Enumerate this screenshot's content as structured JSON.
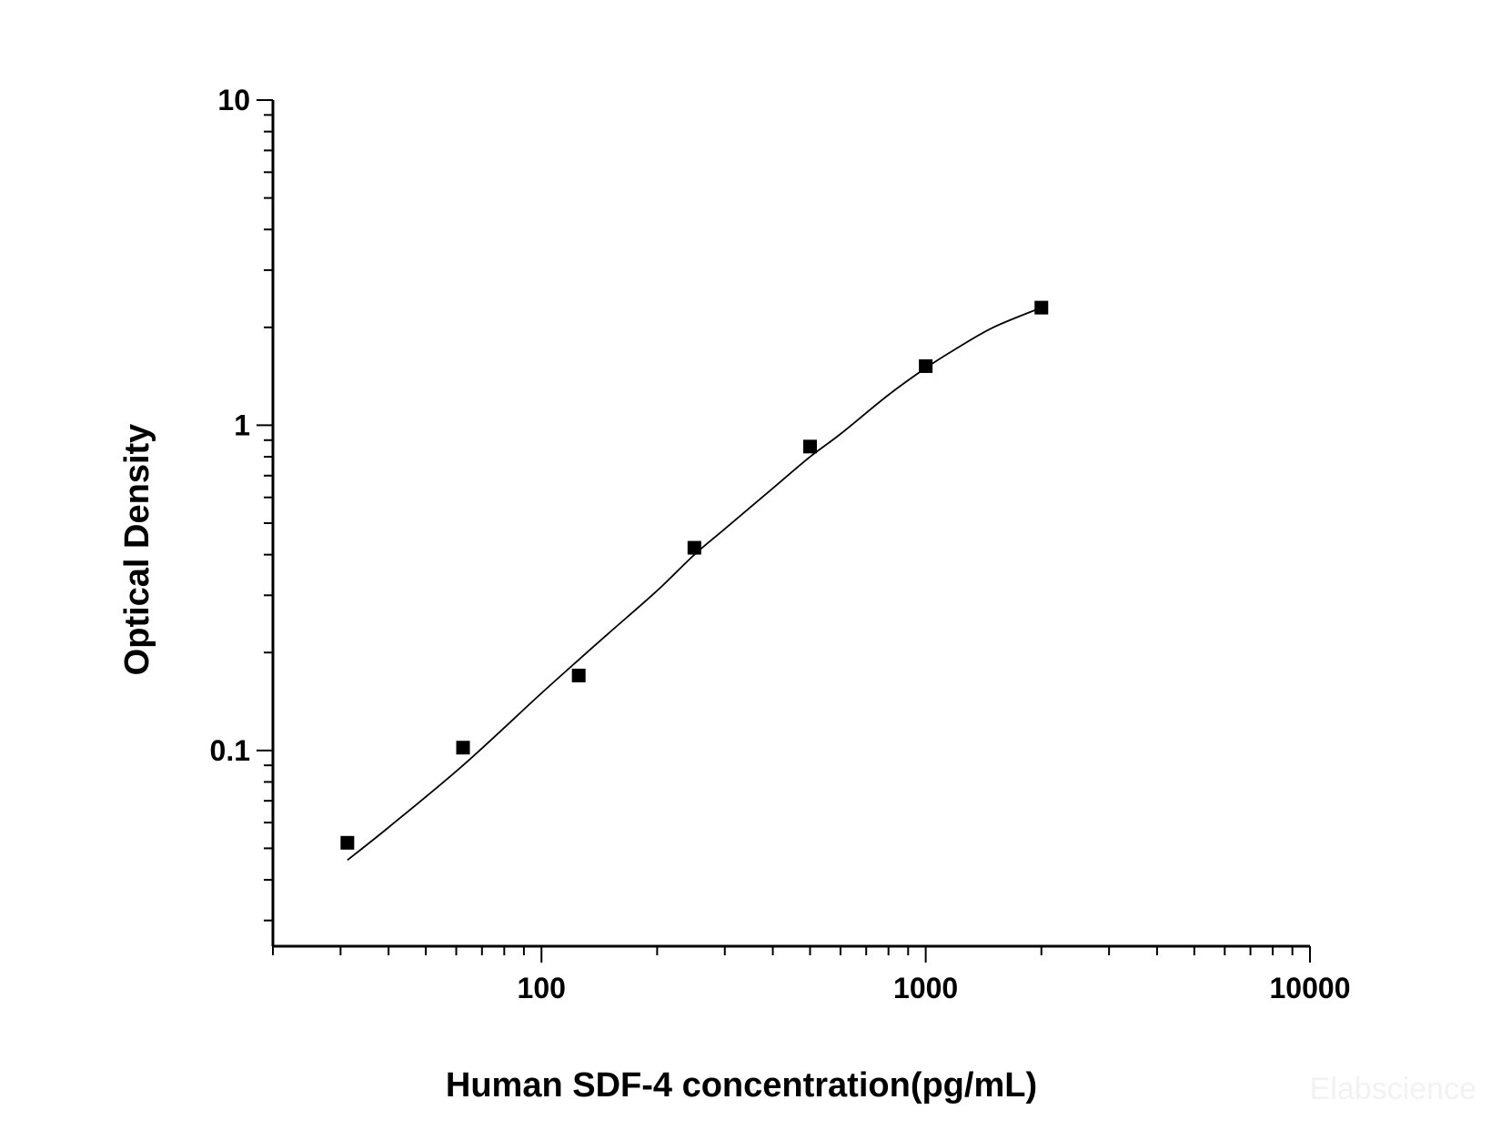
{
  "chart_data": {
    "type": "scatter",
    "title": "",
    "xlabel": "Human SDF-4 concentration(pg/mL)",
    "ylabel": "Optical Density",
    "x_scale": "log",
    "y_scale": "log",
    "xlim": [
      20,
      10000
    ],
    "ylim": [
      0.025,
      10
    ],
    "x_tick_labels": [
      "100",
      "1000",
      "10000"
    ],
    "y_tick_labels": [
      "0.1",
      "1",
      "10"
    ],
    "grid": false,
    "series": [
      {
        "type": "scatter",
        "marker": "square",
        "x": [
          31.25,
          62.5,
          125,
          250,
          500,
          1000,
          2000
        ],
        "y": [
          0.052,
          0.102,
          0.17,
          0.42,
          0.86,
          1.52,
          2.3
        ]
      },
      {
        "type": "line",
        "x": [
          31.25,
          40,
          62.5,
          100,
          125,
          150,
          200,
          250,
          300,
          400,
          500,
          600,
          800,
          1000,
          1200,
          1500,
          2000
        ],
        "y": [
          0.046,
          0.058,
          0.09,
          0.15,
          0.19,
          0.23,
          0.31,
          0.4,
          0.48,
          0.64,
          0.8,
          0.94,
          1.24,
          1.5,
          1.72,
          2.0,
          2.3
        ]
      }
    ],
    "colors": {
      "axis": "#000000",
      "marker": "#000000",
      "curve": "#000000"
    }
  },
  "watermark": "Elabscience"
}
